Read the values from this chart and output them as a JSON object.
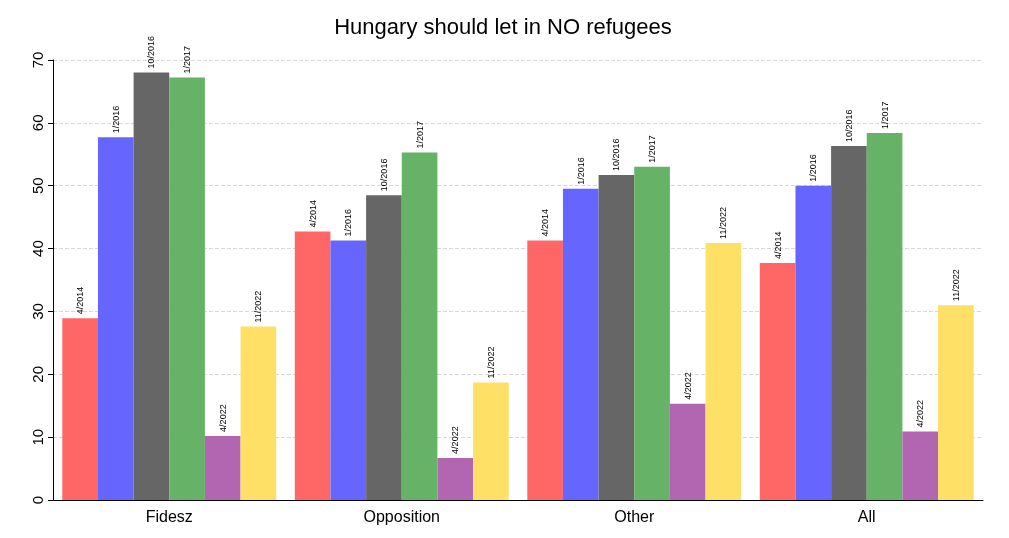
{
  "chart_data": {
    "type": "bar",
    "title": "Hungary should let in NO refugees",
    "categories": [
      "Fidesz",
      "Opposition",
      "Other",
      "All"
    ],
    "series": [
      {
        "name": "4/2014",
        "color": "#ff6666",
        "values": [
          28.9,
          42.7,
          41.3,
          37.7
        ]
      },
      {
        "name": "1/2016",
        "color": "#6666ff",
        "values": [
          57.7,
          41.3,
          49.5,
          50.0
        ]
      },
      {
        "name": "10/2016",
        "color": "#666666",
        "values": [
          68.0,
          48.5,
          51.7,
          56.3
        ]
      },
      {
        "name": "1/2017",
        "color": "#66b266",
        "values": [
          67.2,
          55.3,
          53.0,
          58.4
        ]
      },
      {
        "name": "4/2022",
        "color": "#b266b2",
        "values": [
          10.2,
          6.7,
          15.3,
          10.9
        ]
      },
      {
        "name": "11/2022",
        "color": "#ffe066",
        "values": [
          27.6,
          18.7,
          40.9,
          31.0
        ]
      }
    ],
    "ylim": [
      0,
      70
    ],
    "yticks": [
      0,
      10,
      20,
      30,
      40,
      50,
      60,
      70
    ],
    "grid": "y",
    "legend": false
  }
}
